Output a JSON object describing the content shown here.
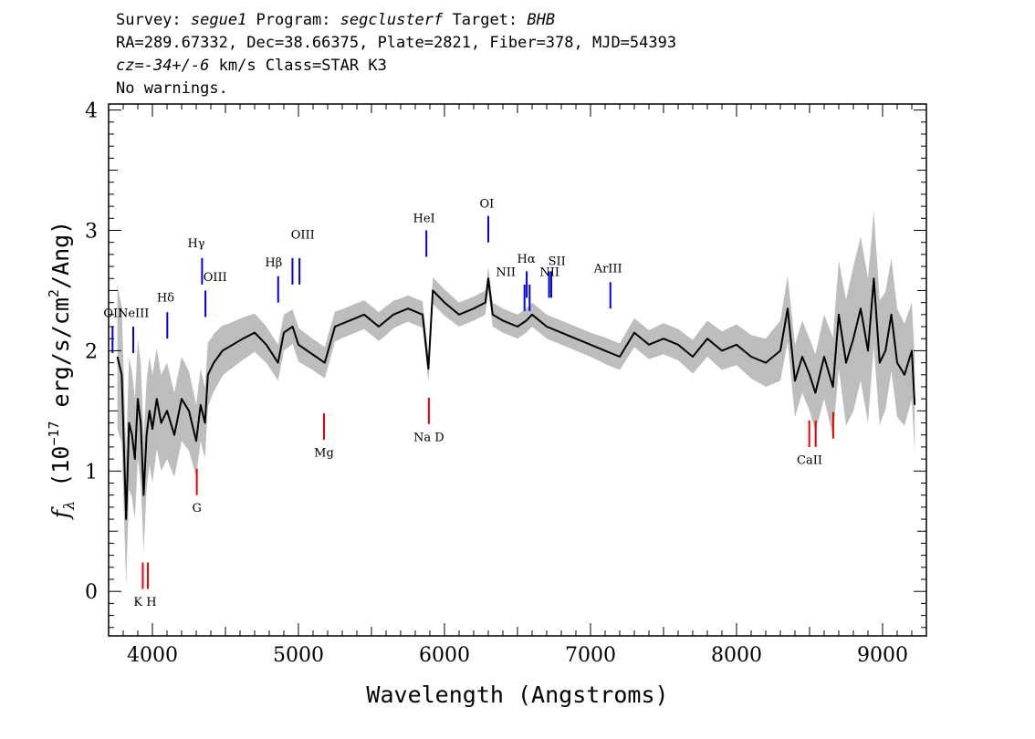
{
  "header": {
    "line1": {
      "survey_label": "Survey: ",
      "survey": "segue1",
      "program_label": " Program: ",
      "program": "segclusterf",
      "target_label": " Target: ",
      "target": "BHB"
    },
    "line2": "RA=289.67332, Dec=38.66375, Plate=2821, Fiber=378, MJD=54393",
    "line3": {
      "cz_label": "cz=",
      "cz_value": "-34+/-6",
      "cz_unit": " km/s Class=STAR K3"
    },
    "line4": "No warnings."
  },
  "chart_data": {
    "type": "line",
    "xlabel": "Wavelength (Angstroms)",
    "ylabel_parts": {
      "f": "f",
      "sub": "λ",
      "pre": " (10",
      "exp1": "−17",
      "mid": " erg/s/cm",
      "exp2": "2",
      "post": "/Ang)"
    },
    "xlim": [
      3700,
      9300
    ],
    "ylim": [
      -0.37,
      4.05
    ],
    "x_ticks": [
      "4000",
      "5000",
      "6000",
      "7000",
      "8000",
      "9000"
    ],
    "y_ticks": [
      "0",
      "1",
      "2",
      "3",
      "4"
    ],
    "colors": {
      "flux": "#000000",
      "error": "#bdbdbd",
      "emission": "#0000ee",
      "absorption": "#ee0000"
    },
    "series": [
      {
        "role": "flux",
        "x": [
          3760,
          3790,
          3820,
          3840,
          3860,
          3880,
          3900,
          3920,
          3940,
          3960,
          3980,
          4000,
          4030,
          4060,
          4100,
          4150,
          4200,
          4250,
          4300,
          4330,
          4360,
          4380,
          4420,
          4480,
          4550,
          4620,
          4700,
          4780,
          4860,
          4900,
          4960,
          5000,
          5060,
          5120,
          5180,
          5250,
          5350,
          5450,
          5550,
          5650,
          5750,
          5850,
          5890,
          5920,
          5960,
          6000,
          6100,
          6200,
          6280,
          6300,
          6330,
          6400,
          6500,
          6560,
          6600,
          6700,
          6800,
          6900,
          7000,
          7100,
          7200,
          7300,
          7400,
          7500,
          7600,
          7700,
          7800,
          7900,
          8000,
          8100,
          8200,
          8300,
          8350,
          8400,
          8450,
          8500,
          8540,
          8600,
          8660,
          8700,
          8750,
          8800,
          8850,
          8900,
          8940,
          8980,
          9020,
          9060,
          9100,
          9150,
          9200,
          9220
        ],
        "y": [
          1.95,
          1.8,
          0.6,
          1.4,
          1.3,
          1.1,
          1.6,
          1.4,
          0.8,
          1.3,
          1.5,
          1.35,
          1.6,
          1.4,
          1.5,
          1.3,
          1.6,
          1.5,
          1.25,
          1.55,
          1.4,
          1.8,
          1.9,
          2.0,
          2.05,
          2.1,
          2.15,
          2.05,
          1.9,
          2.15,
          2.2,
          2.05,
          2.0,
          1.95,
          1.9,
          2.2,
          2.25,
          2.3,
          2.2,
          2.3,
          2.35,
          2.3,
          1.85,
          2.5,
          2.45,
          2.4,
          2.3,
          2.35,
          2.4,
          2.6,
          2.3,
          2.25,
          2.2,
          2.25,
          2.3,
          2.2,
          2.15,
          2.1,
          2.05,
          2.0,
          1.95,
          2.15,
          2.05,
          2.1,
          2.05,
          1.95,
          2.1,
          2.0,
          2.05,
          1.95,
          1.9,
          2.0,
          2.35,
          1.75,
          1.95,
          1.8,
          1.65,
          1.95,
          1.7,
          2.3,
          1.9,
          2.1,
          2.35,
          2.0,
          2.6,
          1.9,
          2.0,
          2.3,
          1.9,
          1.8,
          2.0,
          1.55
        ]
      },
      {
        "role": "error",
        "x": [
          3760,
          3800,
          3840,
          3880,
          3920,
          3960,
          4000,
          4050,
          4100,
          4150,
          4200,
          4250,
          4300,
          4350,
          4400,
          4500,
          4600,
          4700,
          4800,
          4900,
          5000,
          5100,
          5200,
          5300,
          5400,
          5500,
          5600,
          5700,
          5800,
          5900,
          6000,
          6100,
          6200,
          6300,
          6400,
          6500,
          6600,
          6700,
          6800,
          6900,
          7000,
          7100,
          7200,
          7300,
          7400,
          7500,
          7600,
          7700,
          7800,
          7900,
          8000,
          8100,
          8200,
          8300,
          8400,
          8500,
          8600,
          8700,
          8800,
          8900,
          9000,
          9100,
          9200
        ],
        "y": [
          0.6,
          0.55,
          0.55,
          0.5,
          0.5,
          0.45,
          0.45,
          0.4,
          0.4,
          0.35,
          0.35,
          0.33,
          0.3,
          0.3,
          0.25,
          0.2,
          0.18,
          0.16,
          0.15,
          0.15,
          0.14,
          0.13,
          0.13,
          0.12,
          0.12,
          0.12,
          0.12,
          0.11,
          0.11,
          0.11,
          0.11,
          0.1,
          0.1,
          0.1,
          0.1,
          0.1,
          0.1,
          0.1,
          0.1,
          0.1,
          0.1,
          0.11,
          0.11,
          0.12,
          0.12,
          0.13,
          0.13,
          0.14,
          0.15,
          0.16,
          0.17,
          0.18,
          0.2,
          0.25,
          0.3,
          0.3,
          0.35,
          0.45,
          0.6,
          0.6,
          0.5,
          0.45,
          0.4
        ]
      }
    ],
    "emission_lines": [
      {
        "label": "OII",
        "x": 3727,
        "y0": 1.98,
        "y1": 2.2,
        "lx": 3730,
        "ly": 2.28
      },
      {
        "label": "NeIII",
        "x": 3869,
        "y0": 1.98,
        "y1": 2.2,
        "lx": 3870,
        "ly": 2.28
      },
      {
        "label": "Hδ",
        "x": 4102,
        "y0": 2.1,
        "y1": 2.32,
        "lx": 4090,
        "ly": 2.41
      },
      {
        "label": "Hγ",
        "x": 4340,
        "y0": 2.55,
        "y1": 2.77,
        "lx": 4300,
        "ly": 2.86
      },
      {
        "label": "OIII",
        "x": 4363,
        "y0": 2.28,
        "y1": 2.5,
        "lx": 4430,
        "ly": 2.58
      },
      {
        "label": "Hβ",
        "x": 4861,
        "y0": 2.4,
        "y1": 2.62,
        "lx": 4830,
        "ly": 2.7
      },
      {
        "label": "OIII",
        "x": 4959,
        "y0": 2.55,
        "y1": 2.77,
        "lx": 5030,
        "ly": 2.93
      },
      {
        "label": "",
        "x": 5007,
        "y0": 2.55,
        "y1": 2.77
      },
      {
        "label": "HeI",
        "x": 5876,
        "y0": 2.78,
        "y1": 3.0,
        "lx": 5860,
        "ly": 3.07
      },
      {
        "label": "OI",
        "x": 6300,
        "y0": 2.9,
        "y1": 3.12,
        "lx": 6290,
        "ly": 3.19
      },
      {
        "label": "NII",
        "x": 6548,
        "y0": 2.33,
        "y1": 2.55,
        "lx": 6420,
        "ly": 2.62
      },
      {
        "label": "Hα",
        "x": 6563,
        "y0": 2.44,
        "y1": 2.66,
        "lx": 6560,
        "ly": 2.73
      },
      {
        "label": "",
        "x": 6583,
        "y0": 2.33,
        "y1": 2.55
      },
      {
        "label": "SII",
        "x": 6716,
        "y0": 2.44,
        "y1": 2.66,
        "lx": 6770,
        "ly": 2.71
      },
      {
        "label": "NII",
        "x": 6731,
        "y0": 2.44,
        "y1": 2.66,
        "lx": 6720,
        "ly": 2.62
      },
      {
        "label": "ArIII",
        "x": 7136,
        "y0": 2.35,
        "y1": 2.57,
        "lx": 7120,
        "ly": 2.65
      }
    ],
    "absorption_lines": [
      {
        "label": "K H",
        "x": 3934,
        "y0": 0.02,
        "y1": 0.24,
        "lx": 3950,
        "ly": -0.12
      },
      {
        "label": "",
        "x": 3969,
        "y0": 0.02,
        "y1": 0.24
      },
      {
        "label": "G",
        "x": 4304,
        "y0": 0.8,
        "y1": 1.02,
        "lx": 4304,
        "ly": 0.66
      },
      {
        "label": "Mg",
        "x": 5175,
        "y0": 1.26,
        "y1": 1.48,
        "lx": 5175,
        "ly": 1.12
      },
      {
        "label": "Na D",
        "x": 5893,
        "y0": 1.39,
        "y1": 1.61,
        "lx": 5893,
        "ly": 1.25
      },
      {
        "label": "CaII",
        "x": 8498,
        "y0": 1.2,
        "y1": 1.42,
        "lx": 8500,
        "ly": 1.06
      },
      {
        "label": "",
        "x": 8542,
        "y0": 1.2,
        "y1": 1.42
      },
      {
        "label": "",
        "x": 8662,
        "y0": 1.27,
        "y1": 1.49
      }
    ]
  }
}
